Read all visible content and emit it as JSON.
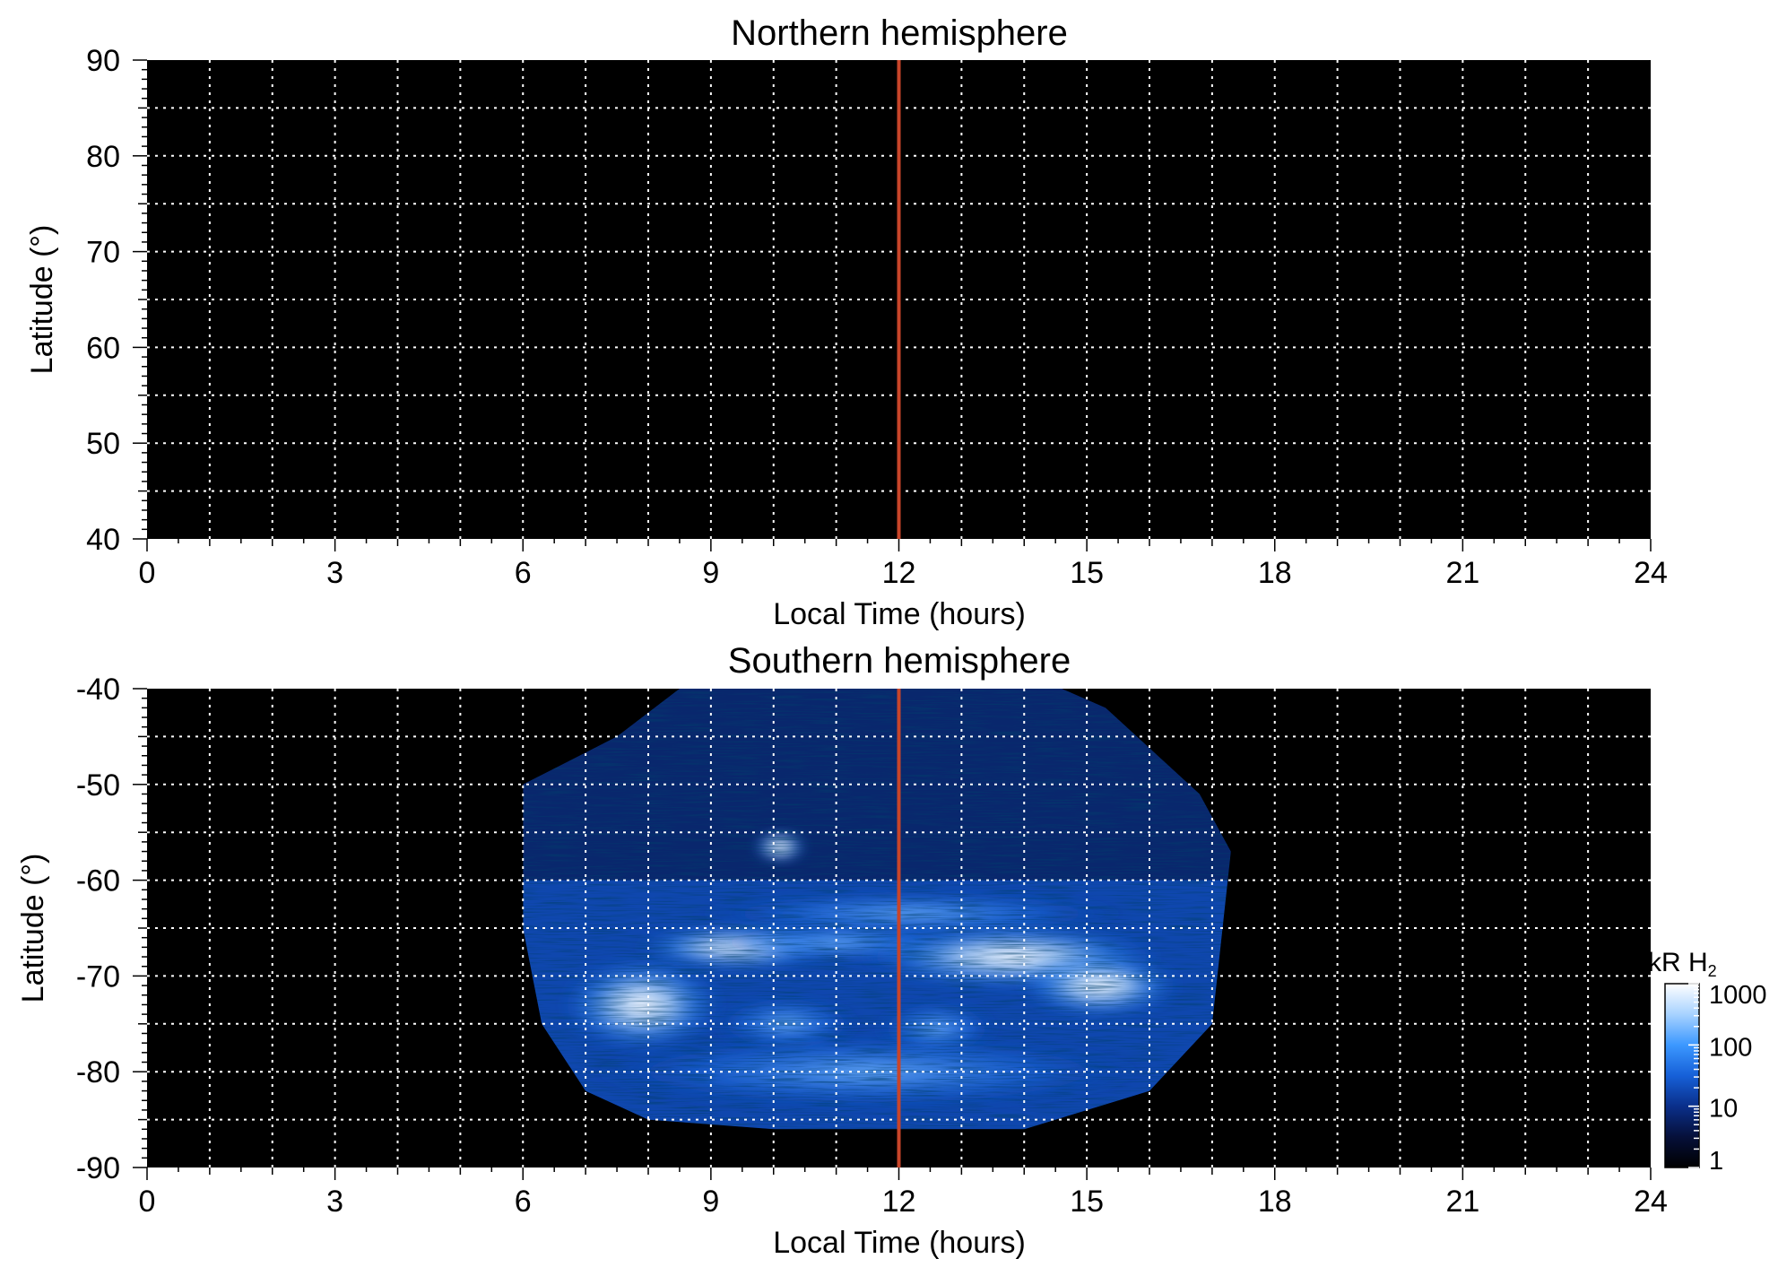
{
  "chart_data": [
    {
      "type": "heatmap",
      "title": "Northern hemisphere",
      "xlabel": "Local Time (hours)",
      "ylabel": "Latitude (°)",
      "xlim": [
        0,
        24
      ],
      "ylim": [
        40,
        90
      ],
      "xticks": [
        0,
        3,
        6,
        9,
        12,
        15,
        18,
        21,
        24
      ],
      "yticks": [
        40,
        50,
        60,
        70,
        80,
        90
      ],
      "grid": true,
      "grid_x_step_hours": 1,
      "grid_y_step_deg": 5,
      "background": "#000000",
      "reference_line": {
        "x": 12,
        "color": "#c8452a"
      },
      "emission": []
    },
    {
      "type": "heatmap",
      "title": "Southern hemisphere",
      "xlabel": "Local Time (hours)",
      "ylabel": "Latitude (°)",
      "xlim": [
        0,
        24
      ],
      "ylim": [
        -90,
        -40
      ],
      "xticks": [
        0,
        3,
        6,
        9,
        12,
        15,
        18,
        21,
        24
      ],
      "yticks": [
        -40,
        -50,
        -60,
        -70,
        -80,
        -90
      ],
      "grid": true,
      "grid_x_step_hours": 1,
      "grid_y_step_deg": 5,
      "background": "#000000",
      "reference_line": {
        "x": 12,
        "color": "#c8452a"
      },
      "coverage_region": {
        "lt_start": 6,
        "lt_end": 17.3,
        "top_edge": [
          [
            6,
            -50
          ],
          [
            7.5,
            -45
          ],
          [
            8.5,
            -40
          ],
          [
            14.6,
            -40
          ],
          [
            15.3,
            -42
          ],
          [
            16.8,
            -51
          ],
          [
            17.3,
            -57
          ]
        ],
        "bottom_edge": [
          [
            17.3,
            -57
          ],
          [
            17.0,
            -75
          ],
          [
            16.0,
            -82
          ],
          [
            14.0,
            -86
          ],
          [
            10.0,
            -86
          ],
          [
            8.0,
            -85
          ],
          [
            7.0,
            -82
          ],
          [
            6.3,
            -75
          ],
          [
            6.0,
            -65
          ],
          [
            6.0,
            -50
          ]
        ]
      },
      "emission": [
        {
          "lt": 10.1,
          "lat": -56.5,
          "kR": 900,
          "size_lt": 0.45,
          "size_lat": 1.8
        },
        {
          "lt": 12.2,
          "lat": -63.5,
          "kR": 300,
          "size_lt": 3.5,
          "size_lat": 2.5
        },
        {
          "lt": 7.9,
          "lat": -73.0,
          "kR": 1000,
          "size_lt": 1.3,
          "size_lat": 5.0
        },
        {
          "lt": 9.4,
          "lat": -67.0,
          "kR": 600,
          "size_lt": 1.6,
          "size_lat": 2.5
        },
        {
          "lt": 11.0,
          "lat": -66.5,
          "kR": 400,
          "size_lt": 2.2,
          "size_lat": 2.2
        },
        {
          "lt": 13.8,
          "lat": -68.0,
          "kR": 1000,
          "size_lt": 2.4,
          "size_lat": 3.5
        },
        {
          "lt": 15.2,
          "lat": -71.0,
          "kR": 600,
          "size_lt": 1.3,
          "size_lat": 3.5
        },
        {
          "lt": 10.2,
          "lat": -75.0,
          "kR": 200,
          "size_lt": 1.2,
          "size_lat": 3.0
        },
        {
          "lt": 12.6,
          "lat": -75.5,
          "kR": 250,
          "size_lt": 1.0,
          "size_lat": 3.0
        },
        {
          "lt": 11.5,
          "lat": -80.0,
          "kR": 120,
          "size_lt": 4.5,
          "size_lat": 4.0
        }
      ]
    }
  ],
  "colorbar": {
    "label": "kR H₂",
    "label_main": "kR H",
    "label_sub": "2",
    "scale": "log",
    "range": [
      1,
      1000
    ],
    "ticks": [
      "1000",
      "100",
      "10",
      "1"
    ],
    "colormap": [
      "#000000",
      "#06103a",
      "#0a2f8a",
      "#1660d8",
      "#3c98ff",
      "#a7d2ff",
      "#ffffff"
    ]
  }
}
